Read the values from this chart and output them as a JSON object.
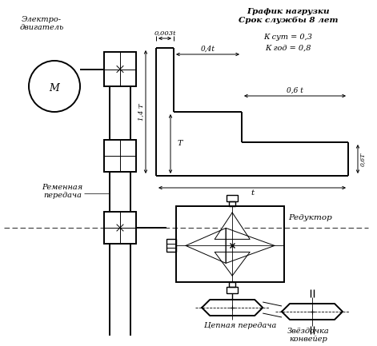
{
  "bg_color": "#ffffff",
  "line_color": "#000000",
  "texts": {
    "elektro": "Электро-\nдвигатель",
    "motor_label": "М",
    "remennaya": "Ременная\nпередача",
    "grafik": "График нагрузки\nСрок службы 8 лет",
    "kcut": "К сут = 0,3",
    "kgod": "К год = 0,8",
    "dim_003t": "0,003t",
    "dim_04t": "0,4t",
    "dim_06t": "0,6 t",
    "dim_14T": "1,4 T",
    "dim_T": "T",
    "dim_t": "t",
    "dim_06T_side": "0,6T",
    "reduktor": "Редуктор",
    "cepnaya": "Цепная передача",
    "zvezdochka": "Звёздочка\nконвейер"
  }
}
